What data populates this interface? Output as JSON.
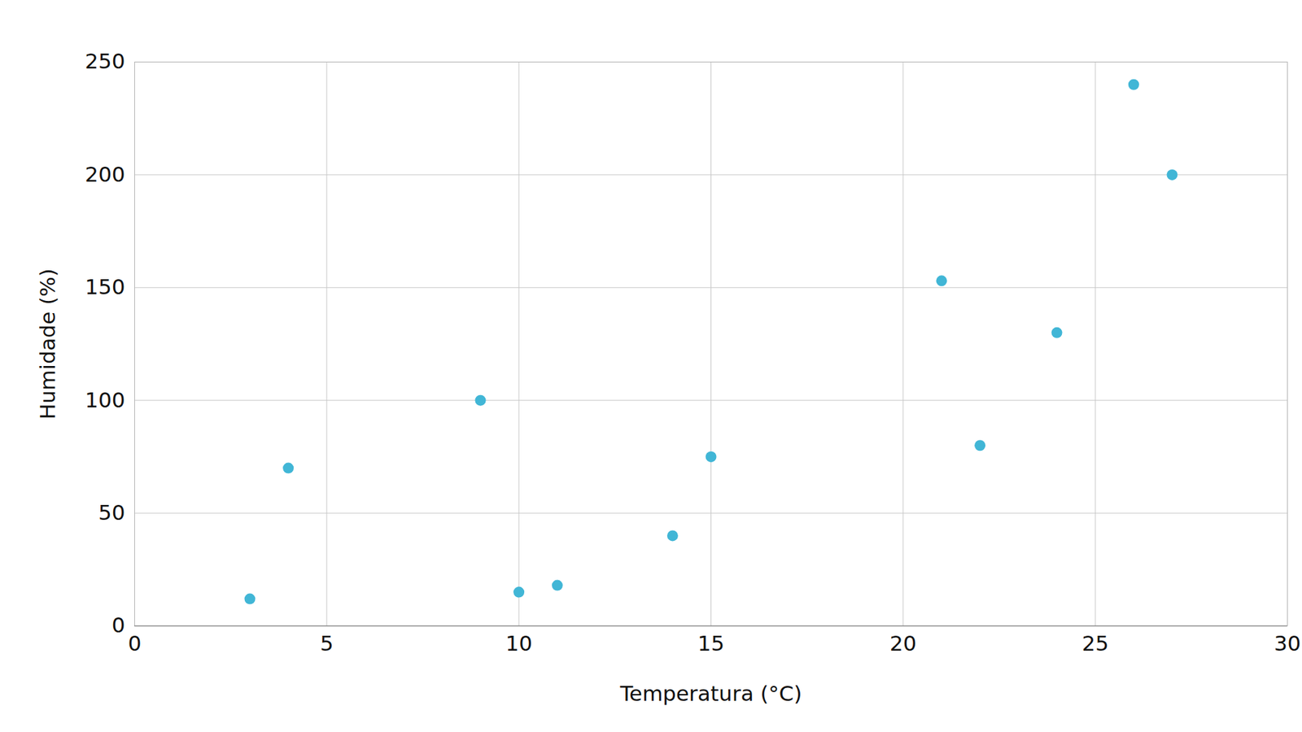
{
  "chart_data": {
    "type": "scatter",
    "x_label": "Temperatura (°C)",
    "y_label": "Humidade (%)",
    "x": [
      3,
      4,
      9,
      10,
      11,
      14,
      15,
      21,
      22,
      24,
      26,
      27
    ],
    "values": [
      12,
      70,
      100,
      15,
      18,
      40,
      75,
      153,
      80,
      130,
      240,
      200
    ],
    "color": "#41b6d6",
    "marker": "circle",
    "xlim": [
      0,
      30
    ],
    "xticks": [
      0,
      5,
      10,
      15,
      20,
      25,
      30
    ],
    "ylim": [
      0,
      250
    ],
    "yticks": [
      0,
      50,
      100,
      150,
      200,
      250
    ],
    "grid": true
  }
}
